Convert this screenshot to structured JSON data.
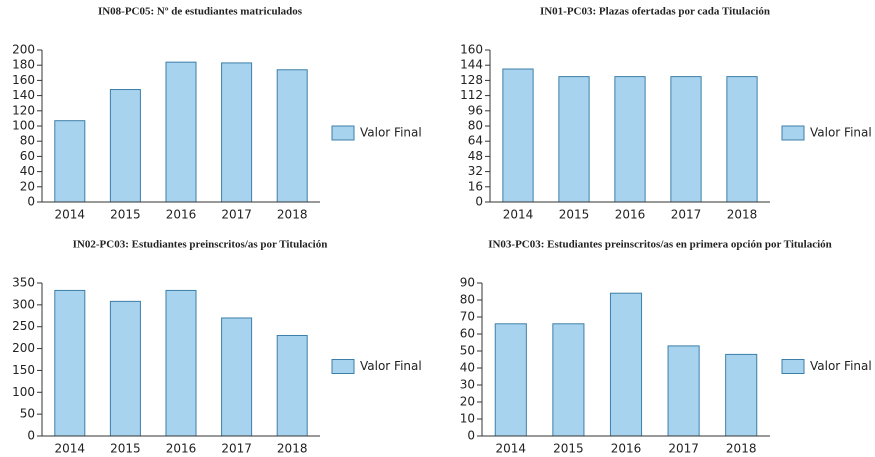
{
  "chart_data": [
    {
      "type": "bar",
      "title": "IN08-PC05: Nº de estudiantes matriculados",
      "categories": [
        "2014",
        "2015",
        "2016",
        "2017",
        "2018"
      ],
      "series": [
        {
          "name": "Valor Final",
          "color": "#a8d3ee",
          "values": [
            107,
            148,
            184,
            183,
            174
          ]
        }
      ],
      "ylim": [
        0,
        200
      ],
      "yticks": [
        0,
        20,
        40,
        60,
        80,
        100,
        120,
        140,
        160,
        180,
        200
      ],
      "legend": "right"
    },
    {
      "type": "bar",
      "title": "IN01-PC03: Plazas ofertadas por cada Titulación",
      "categories": [
        "2014",
        "2015",
        "2016",
        "2017",
        "2018"
      ],
      "series": [
        {
          "name": "Valor Final",
          "color": "#a8d3ee",
          "values": [
            140,
            132,
            132,
            132,
            132
          ]
        }
      ],
      "ylim": [
        0,
        160
      ],
      "yticks": [
        0,
        16,
        32,
        48,
        64,
        80,
        96,
        112,
        128,
        144,
        160
      ],
      "legend": "right"
    },
    {
      "type": "bar",
      "title": "IN02-PC03: Estudiantes preinscritos/as por Titulación",
      "categories": [
        "2014",
        "2015",
        "2016",
        "2017",
        "2018"
      ],
      "series": [
        {
          "name": "Valor Final",
          "color": "#a8d3ee",
          "values": [
            333,
            308,
            333,
            270,
            230
          ]
        }
      ],
      "ylim": [
        0,
        350
      ],
      "yticks": [
        0,
        50,
        100,
        150,
        200,
        250,
        300,
        350
      ],
      "legend": "right"
    },
    {
      "type": "bar",
      "title": "IN03-PC03: Estudiantes preinscritos/as en primera opción por Titulación",
      "categories": [
        "2014",
        "2015",
        "2016",
        "2017",
        "2018"
      ],
      "series": [
        {
          "name": "Valor Final",
          "color": "#a8d3ee",
          "values": [
            66,
            66,
            84,
            53,
            48
          ]
        }
      ],
      "ylim": [
        0,
        90
      ],
      "yticks": [
        0,
        10,
        20,
        30,
        40,
        50,
        60,
        70,
        80,
        90
      ],
      "legend": "right"
    }
  ]
}
